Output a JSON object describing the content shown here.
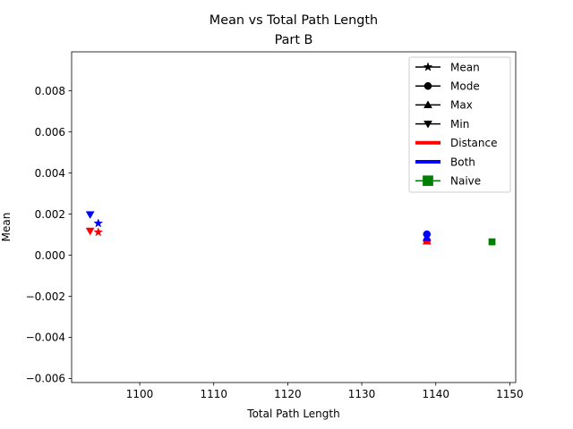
{
  "chart_data": {
    "type": "scatter",
    "title": "Mean vs Total Path Length",
    "subtitle": "Part B",
    "xlabel": "Total Path Length",
    "ylabel": "Mean",
    "xlim": [
      1090.8,
      1150.8
    ],
    "ylim": [
      -0.0062,
      0.0099
    ],
    "xticks": [
      {
        "value": 1100,
        "label": "1100"
      },
      {
        "value": 1110,
        "label": "1110"
      },
      {
        "value": 1120,
        "label": "1120"
      },
      {
        "value": 1130,
        "label": "1130"
      },
      {
        "value": 1140,
        "label": "1140"
      },
      {
        "value": 1150,
        "label": "1150"
      }
    ],
    "yticks": [
      {
        "value": -0.006,
        "label": "−0.006"
      },
      {
        "value": -0.004,
        "label": "−0.004"
      },
      {
        "value": -0.002,
        "label": "−0.002"
      },
      {
        "value": 0.0,
        "label": "0.000"
      },
      {
        "value": 0.002,
        "label": "0.002"
      },
      {
        "value": 0.004,
        "label": "0.004"
      },
      {
        "value": 0.006,
        "label": "0.006"
      },
      {
        "value": 0.008,
        "label": "0.008"
      }
    ],
    "grid": false,
    "legend_position": "top-right",
    "legend": [
      {
        "label": "Mean",
        "marker": "star",
        "color": "#000000",
        "line": "#000000",
        "lineWidth": 1.5
      },
      {
        "label": "Mode",
        "marker": "circle",
        "color": "#000000",
        "line": "#000000",
        "lineWidth": 1.5
      },
      {
        "label": "Max",
        "marker": "triangle-up",
        "color": "#000000",
        "line": "#000000",
        "lineWidth": 1.5
      },
      {
        "label": "Min",
        "marker": "triangle-down",
        "color": "#000000",
        "line": "#000000",
        "lineWidth": 1.5
      },
      {
        "label": "Distance",
        "marker": "none",
        "color": "#ff0000",
        "line": "#ff0000",
        "lineWidth": 4
      },
      {
        "label": "Both",
        "marker": "none",
        "color": "#0000ff",
        "line": "#0000ff",
        "lineWidth": 4
      },
      {
        "label": "Naive",
        "marker": "square",
        "color": "#008000",
        "line": "#008000",
        "lineWidth": 1.5
      }
    ],
    "series": [
      {
        "group": "Distance",
        "stat": "Min",
        "marker": "triangle-down",
        "color": "#ff0000",
        "x": 1093.3,
        "y": 0.00118
      },
      {
        "group": "Distance",
        "stat": "Mean",
        "marker": "star",
        "color": "#ff0000",
        "x": 1094.4,
        "y": 0.00112
      },
      {
        "group": "Both",
        "stat": "Min",
        "marker": "triangle-down",
        "color": "#0000ff",
        "x": 1093.3,
        "y": 0.00198
      },
      {
        "group": "Both",
        "stat": "Mean",
        "marker": "star",
        "color": "#0000ff",
        "x": 1094.4,
        "y": 0.00155
      },
      {
        "group": "Distance",
        "stat": "Max",
        "marker": "triangle-up",
        "color": "#ff0000",
        "x": 1138.8,
        "y": 0.00068
      },
      {
        "group": "Distance",
        "stat": "Mode",
        "marker": "circle",
        "color": "#ff0000",
        "x": 1138.8,
        "y": 0.00072
      },
      {
        "group": "Both",
        "stat": "Max",
        "marker": "triangle-up",
        "color": "#0000ff",
        "x": 1138.8,
        "y": 0.00085
      },
      {
        "group": "Both",
        "stat": "Mode",
        "marker": "circle",
        "color": "#0000ff",
        "x": 1138.8,
        "y": 0.00102
      },
      {
        "group": "Naive",
        "stat": "",
        "marker": "square",
        "color": "#008000",
        "x": 1147.6,
        "y": 0.00065
      }
    ]
  }
}
